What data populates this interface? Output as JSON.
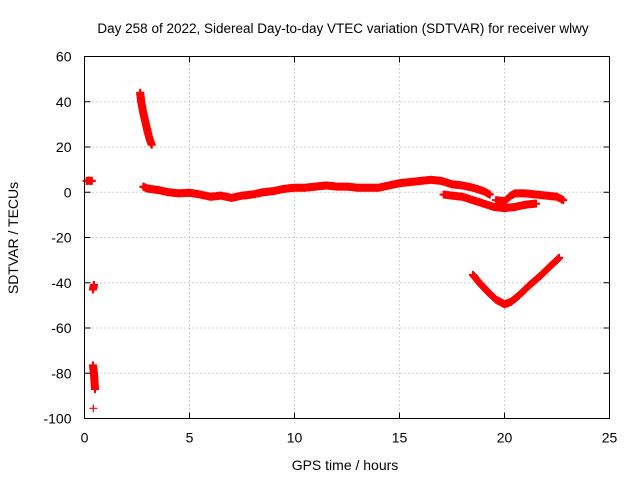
{
  "chart_data": {
    "type": "scatter",
    "title": "Day 258 of 2022, Sidereal Day-to-day VTEC variation (SDTVAR) for receiver wlwy",
    "xlabel": "GPS time / hours",
    "ylabel": "SDTVAR / TECUs",
    "xlim": [
      0,
      25
    ],
    "ylim": [
      -100,
      60
    ],
    "xticks": [
      0,
      5,
      10,
      15,
      20,
      25
    ],
    "yticks": [
      -100,
      -80,
      -60,
      -40,
      -20,
      0,
      20,
      40,
      60
    ],
    "grid": true,
    "legend": "none",
    "marker": "plus",
    "color": "#ff0000",
    "series": [
      {
        "name": "SDTVAR",
        "points": [
          [
            0.1,
            5
          ],
          [
            0.2,
            5.2
          ],
          [
            0.3,
            5
          ],
          [
            0.35,
            5.1
          ],
          [
            0.4,
            -43
          ],
          [
            0.45,
            -41
          ],
          [
            0.4,
            -76.5
          ],
          [
            0.45,
            -80
          ],
          [
            0.5,
            -87
          ],
          [
            0.42,
            -95.5
          ],
          [
            2.65,
            44
          ],
          [
            2.7,
            40
          ],
          [
            2.8,
            35
          ],
          [
            2.9,
            31
          ],
          [
            3.0,
            27
          ],
          [
            3.1,
            23.5
          ],
          [
            3.2,
            21
          ],
          [
            2.8,
            2.5
          ],
          [
            3.0,
            1.6
          ],
          [
            3.5,
            1
          ],
          [
            4,
            0
          ],
          [
            4.5,
            -0.5
          ],
          [
            5,
            -0.2
          ],
          [
            5.5,
            -1
          ],
          [
            6,
            -2
          ],
          [
            6.5,
            -1.5
          ],
          [
            7,
            -2.5
          ],
          [
            7.5,
            -1.5
          ],
          [
            8,
            -1
          ],
          [
            8.5,
            0
          ],
          [
            9,
            0.5
          ],
          [
            9.5,
            1.5
          ],
          [
            10,
            2
          ],
          [
            10.5,
            2
          ],
          [
            11,
            2.5
          ],
          [
            11.5,
            3
          ],
          [
            12,
            2.5
          ],
          [
            12.5,
            2.5
          ],
          [
            13,
            2
          ],
          [
            13.5,
            2
          ],
          [
            14,
            2
          ],
          [
            14.5,
            3
          ],
          [
            15,
            4
          ],
          [
            15.5,
            4.5
          ],
          [
            16,
            5
          ],
          [
            16.5,
            5.5
          ],
          [
            17,
            5
          ],
          [
            17.5,
            3.5
          ],
          [
            18,
            3
          ],
          [
            18.5,
            2
          ],
          [
            19,
            0.5
          ],
          [
            19.3,
            -1
          ],
          [
            17.1,
            -1
          ],
          [
            17.5,
            -1.5
          ],
          [
            18,
            -2
          ],
          [
            18.5,
            -3.5
          ],
          [
            19,
            -5
          ],
          [
            19.5,
            -6.5
          ],
          [
            20,
            -7
          ],
          [
            20.5,
            -6.5
          ],
          [
            21,
            -5.5
          ],
          [
            21.5,
            -5
          ],
          [
            19.6,
            -3.5
          ],
          [
            20,
            -4
          ],
          [
            20.3,
            -1.5
          ],
          [
            20.5,
            -0.5
          ],
          [
            21,
            -0.5
          ],
          [
            21.5,
            -1
          ],
          [
            22,
            -1.5
          ],
          [
            22.5,
            -2
          ],
          [
            22.8,
            -3.5
          ],
          [
            18.5,
            -36.5
          ],
          [
            18.8,
            -40
          ],
          [
            19.2,
            -44
          ],
          [
            19.6,
            -47.5
          ],
          [
            20,
            -49.5
          ],
          [
            20.3,
            -48.5
          ],
          [
            20.7,
            -45.5
          ],
          [
            21.2,
            -41
          ],
          [
            21.7,
            -37
          ],
          [
            22.2,
            -32.5
          ],
          [
            22.6,
            -29
          ]
        ]
      }
    ]
  }
}
